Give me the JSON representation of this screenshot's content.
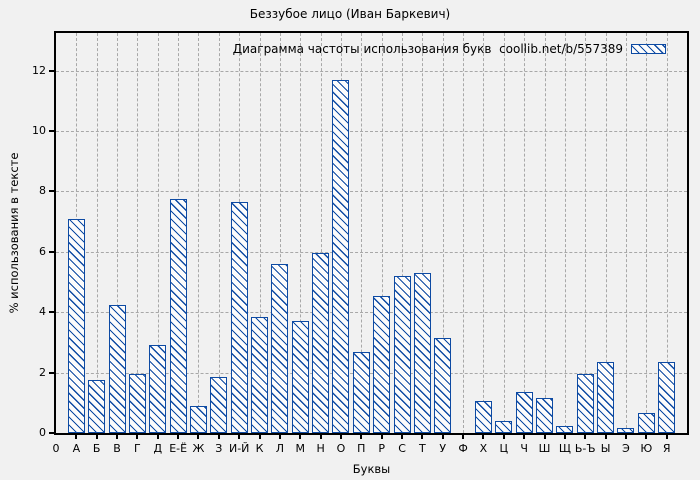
{
  "title": "Беззубое лицо (Иван Баркевич)",
  "colors": {
    "background": "#f1f1f1",
    "axis": "#000000",
    "text": "#000000",
    "grid": "#a8a8a8",
    "bar_border": "#0d4aa3",
    "bar_fill": "#fcfcfc"
  },
  "chart_data": {
    "type": "bar",
    "title": "Беззубое лицо (Иван Баркевич)",
    "legend": "Диаграмма частоты использования букв  coollib.net/b/557389",
    "legend_position": "top-right-inside",
    "xlabel": "Буквы",
    "ylabel": "% использования в тексте",
    "x_origin_label": "0",
    "grid": true,
    "hatch": "diagonal-backslash",
    "bar_style": "blue outline with diagonal hatch on white fill",
    "ylim": [
      0,
      13.25
    ],
    "y_ticks": [
      0,
      2,
      4,
      6,
      8,
      10,
      12
    ],
    "categories": [
      "А",
      "Б",
      "В",
      "Г",
      "Д",
      "Е-Ё",
      "Ж",
      "З",
      "И-Й",
      "К",
      "Л",
      "М",
      "Н",
      "О",
      "П",
      "Р",
      "С",
      "Т",
      "У",
      "Ф",
      "Х",
      "Ц",
      "Ч",
      "Ш",
      "Щ",
      "Ь-Ъ",
      "Ы",
      "Э",
      "Ю",
      "Я"
    ],
    "values": [
      7.1,
      1.75,
      4.25,
      1.95,
      2.9,
      7.75,
      0.9,
      1.85,
      7.65,
      3.85,
      5.6,
      3.7,
      5.95,
      11.7,
      2.7,
      4.55,
      5.2,
      5.3,
      3.15,
      0,
      1.05,
      0.4,
      1.35,
      1.15,
      0.22,
      1.95,
      2.35,
      0.18,
      0.65,
      2.35
    ]
  }
}
